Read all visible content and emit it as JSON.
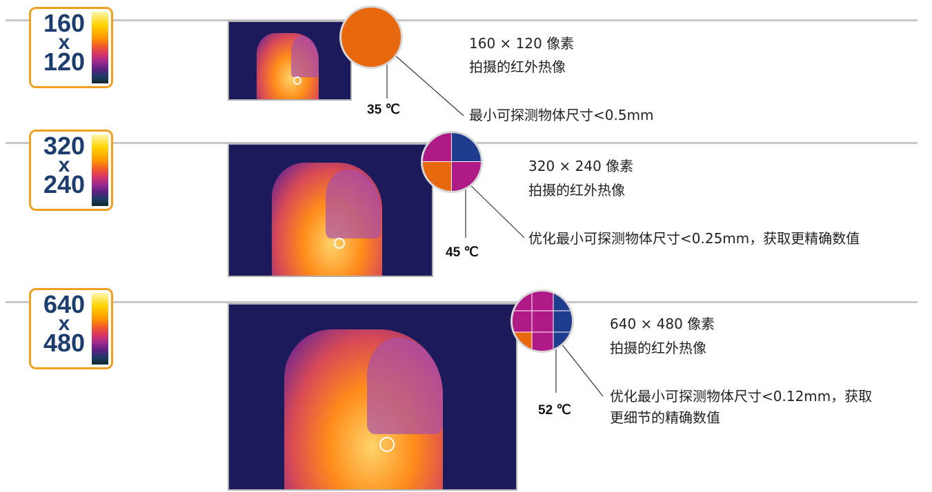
{
  "rows": [
    {
      "badge": {
        "top": "160",
        "x": "x",
        "bottom": "120"
      },
      "temperature": "35 ℃",
      "line1": "160 × 120 像素",
      "line2": "拍摄的红外热像",
      "line3": "最小可探测物体尺寸<0.5mm",
      "line4": ""
    },
    {
      "badge": {
        "top": "320",
        "x": "x",
        "bottom": "240"
      },
      "temperature": "45 ℃",
      "line1": "320 × 240 像素",
      "line2": "拍摄的红外热像",
      "line3": "优化最小可探测物体尺寸<0.25mm，获取更精确数值",
      "line4": ""
    },
    {
      "badge": {
        "top": "640",
        "x": "x",
        "bottom": "480"
      },
      "temperature": "52 ℃",
      "line1": "640 × 480 像素",
      "line2": "拍摄的红外热像",
      "line3": "优化最小可探测物体尺寸<0.12mm，获取",
      "line4": "更细节的精确数值"
    }
  ],
  "colors": {
    "badge_border": "#f0a020",
    "badge_text": "#1c3d6e",
    "thermal_background": "#1b1a5a",
    "pixel_orange": "#e8680e",
    "pixel_magenta": "#b01a86",
    "pixel_blue": "#1e3d8f"
  }
}
